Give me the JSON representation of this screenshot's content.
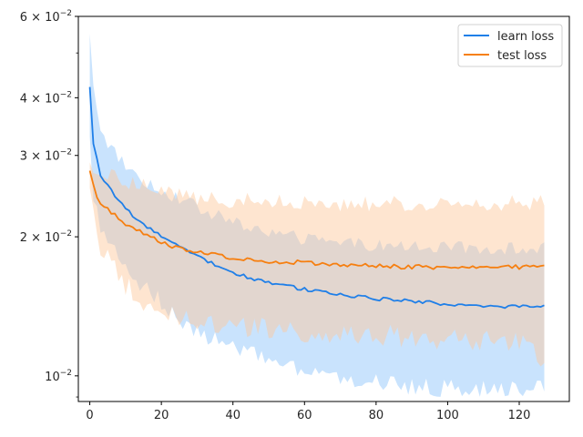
{
  "chart_data": {
    "type": "line",
    "scale_y": "log",
    "title": "",
    "xlabel": "",
    "ylabel": "",
    "xlim": [
      -3.2,
      134
    ],
    "ylim": [
      0.0088,
      0.06
    ],
    "x_ticks": [
      0,
      20,
      40,
      60,
      80,
      100,
      120
    ],
    "y_major_ticks": [
      {
        "value": 0.01,
        "label_base": "10",
        "label_exp": "−2"
      },
      {
        "value": 0.02,
        "label_base": "2 × 10",
        "label_exp": "−2"
      },
      {
        "value": 0.03,
        "label_base": "3 × 10",
        "label_exp": "−2"
      },
      {
        "value": 0.04,
        "label_base": "4 × 10",
        "label_exp": "−2"
      },
      {
        "value": 0.06,
        "label_base": "6 × 10",
        "label_exp": "−2"
      }
    ],
    "y_minor_ticks": [
      0.009,
      0.05
    ],
    "grid": false,
    "legend_position": "top-right",
    "series": [
      {
        "name": "learn loss",
        "color": "#1f7fe8",
        "band_color": "#8fc4fb",
        "mean_anchors": [
          [
            0,
            0.0422
          ],
          [
            1,
            0.0318
          ],
          [
            3,
            0.0272
          ],
          [
            5,
            0.0258
          ],
          [
            10,
            0.023
          ],
          [
            15,
            0.0212
          ],
          [
            20,
            0.02
          ],
          [
            30,
            0.0182
          ],
          [
            40,
            0.0167
          ],
          [
            50,
            0.0159
          ],
          [
            60,
            0.0154
          ],
          [
            70,
            0.015
          ],
          [
            80,
            0.0147
          ],
          [
            90,
            0.0145
          ],
          [
            100,
            0.0143
          ],
          [
            110,
            0.0142
          ],
          [
            120,
            0.0141
          ],
          [
            127,
            0.0141
          ]
        ],
        "upper_anchors": [
          [
            0,
            0.055
          ],
          [
            1,
            0.042
          ],
          [
            3,
            0.0345
          ],
          [
            5,
            0.032
          ],
          [
            10,
            0.0285
          ],
          [
            15,
            0.0265
          ],
          [
            20,
            0.0252
          ],
          [
            30,
            0.0232
          ],
          [
            40,
            0.0215
          ],
          [
            50,
            0.0205
          ],
          [
            60,
            0.0198
          ],
          [
            70,
            0.0194
          ],
          [
            80,
            0.0192
          ],
          [
            90,
            0.019
          ],
          [
            100,
            0.019
          ],
          [
            110,
            0.0189
          ],
          [
            120,
            0.0189
          ],
          [
            127,
            0.0189
          ]
        ],
        "lower_anchors": [
          [
            0,
            0.033
          ],
          [
            1,
            0.0245
          ],
          [
            3,
            0.021
          ],
          [
            5,
            0.0195
          ],
          [
            10,
            0.017
          ],
          [
            15,
            0.0155
          ],
          [
            20,
            0.0145
          ],
          [
            25,
            0.0133
          ],
          [
            30,
            0.0125
          ],
          [
            40,
            0.0115
          ],
          [
            50,
            0.0108
          ],
          [
            60,
            0.0102
          ],
          [
            70,
            0.0099
          ],
          [
            80,
            0.0097
          ],
          [
            90,
            0.0095
          ],
          [
            100,
            0.0094
          ],
          [
            110,
            0.0094
          ],
          [
            120,
            0.0094
          ],
          [
            127,
            0.0094
          ]
        ],
        "noise_amp": 0.04
      },
      {
        "name": "test loss",
        "color": "#f67f10",
        "band_color": "#fcc89c",
        "mean_anchors": [
          [
            0,
            0.0278
          ],
          [
            2,
            0.0242
          ],
          [
            4,
            0.0232
          ],
          [
            6,
            0.0226
          ],
          [
            10,
            0.0213
          ],
          [
            15,
            0.0204
          ],
          [
            20,
            0.0194
          ],
          [
            30,
            0.0185
          ],
          [
            40,
            0.018
          ],
          [
            50,
            0.0177
          ],
          [
            60,
            0.0176
          ],
          [
            70,
            0.0174
          ],
          [
            80,
            0.0173
          ],
          [
            90,
            0.0172
          ],
          [
            100,
            0.0172
          ],
          [
            110,
            0.0172
          ],
          [
            120,
            0.0172
          ],
          [
            127,
            0.0173
          ]
        ],
        "upper_anchors": [
          [
            0,
            0.029
          ],
          [
            2,
            0.0282
          ],
          [
            5,
            0.0275
          ],
          [
            10,
            0.0265
          ],
          [
            20,
            0.0252
          ],
          [
            30,
            0.0243
          ],
          [
            40,
            0.024
          ],
          [
            60,
            0.0237
          ],
          [
            80,
            0.0236
          ],
          [
            100,
            0.0236
          ],
          [
            127,
            0.0237
          ]
        ],
        "lower_anchors": [
          [
            0,
            0.0255
          ],
          [
            2,
            0.02
          ],
          [
            5,
            0.0178
          ],
          [
            10,
            0.0157
          ],
          [
            15,
            0.0145
          ],
          [
            20,
            0.0138
          ],
          [
            25,
            0.0132
          ],
          [
            30,
            0.013
          ],
          [
            40,
            0.0128
          ],
          [
            60,
            0.0125
          ],
          [
            80,
            0.0123
          ],
          [
            100,
            0.012
          ],
          [
            120,
            0.0118
          ],
          [
            127,
            0.0108
          ]
        ],
        "noise_amp": 0.05
      }
    ]
  }
}
